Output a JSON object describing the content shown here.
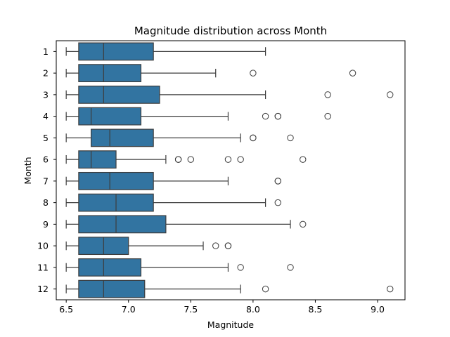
{
  "chart_data": {
    "type": "boxplot",
    "orientation": "horizontal",
    "title": "Magnitude distribution across Month",
    "xlabel": "Magnitude",
    "ylabel": "Month",
    "xlim": [
      6.42,
      9.22
    ],
    "xticks": [
      "6.5",
      "7.0",
      "7.5",
      "8.0",
      "8.5",
      "9.0"
    ],
    "grid": false,
    "box_color": "#3274a1",
    "edge_color": "#3d3d3d",
    "categories": [
      "1",
      "2",
      "3",
      "4",
      "5",
      "6",
      "7",
      "8",
      "9",
      "10",
      "11",
      "12"
    ],
    "boxes": [
      {
        "category": "1",
        "whisker_low": 6.5,
        "q1": 6.6,
        "median": 6.8,
        "q3": 7.2,
        "whisker_high": 8.1,
        "outliers": []
      },
      {
        "category": "2",
        "whisker_low": 6.5,
        "q1": 6.6,
        "median": 6.8,
        "q3": 7.1,
        "whisker_high": 7.7,
        "outliers": [
          8.0,
          8.8
        ]
      },
      {
        "category": "3",
        "whisker_low": 6.5,
        "q1": 6.6,
        "median": 6.8,
        "q3": 7.25,
        "whisker_high": 8.1,
        "outliers": [
          8.6,
          9.1
        ]
      },
      {
        "category": "4",
        "whisker_low": 6.5,
        "q1": 6.6,
        "median": 6.7,
        "q3": 7.1,
        "whisker_high": 7.8,
        "outliers": [
          8.1,
          8.2,
          8.2,
          8.6
        ]
      },
      {
        "category": "5",
        "whisker_low": 6.5,
        "q1": 6.7,
        "median": 6.85,
        "q3": 7.2,
        "whisker_high": 7.9,
        "outliers": [
          8.0,
          8.0,
          8.3
        ]
      },
      {
        "category": "6",
        "whisker_low": 6.5,
        "q1": 6.6,
        "median": 6.7,
        "q3": 6.9,
        "whisker_high": 7.3,
        "outliers": [
          7.4,
          7.4,
          7.5,
          7.8,
          7.9,
          8.4
        ]
      },
      {
        "category": "7",
        "whisker_low": 6.5,
        "q1": 6.6,
        "median": 6.85,
        "q3": 7.2,
        "whisker_high": 7.8,
        "outliers": [
          8.2,
          8.2
        ]
      },
      {
        "category": "8",
        "whisker_low": 6.5,
        "q1": 6.6,
        "median": 6.9,
        "q3": 7.2,
        "whisker_high": 8.1,
        "outliers": [
          8.2
        ]
      },
      {
        "category": "9",
        "whisker_low": 6.5,
        "q1": 6.6,
        "median": 6.9,
        "q3": 7.3,
        "whisker_high": 8.3,
        "outliers": [
          8.4
        ]
      },
      {
        "category": "10",
        "whisker_low": 6.5,
        "q1": 6.6,
        "median": 6.8,
        "q3": 7.0,
        "whisker_high": 7.6,
        "outliers": [
          7.7,
          7.8,
          7.8
        ]
      },
      {
        "category": "11",
        "whisker_low": 6.5,
        "q1": 6.6,
        "median": 6.8,
        "q3": 7.1,
        "whisker_high": 7.8,
        "outliers": [
          7.9,
          8.3
        ]
      },
      {
        "category": "12",
        "whisker_low": 6.5,
        "q1": 6.6,
        "median": 6.8,
        "q3": 7.13,
        "whisker_high": 7.9,
        "outliers": [
          8.1,
          9.1
        ]
      }
    ]
  }
}
